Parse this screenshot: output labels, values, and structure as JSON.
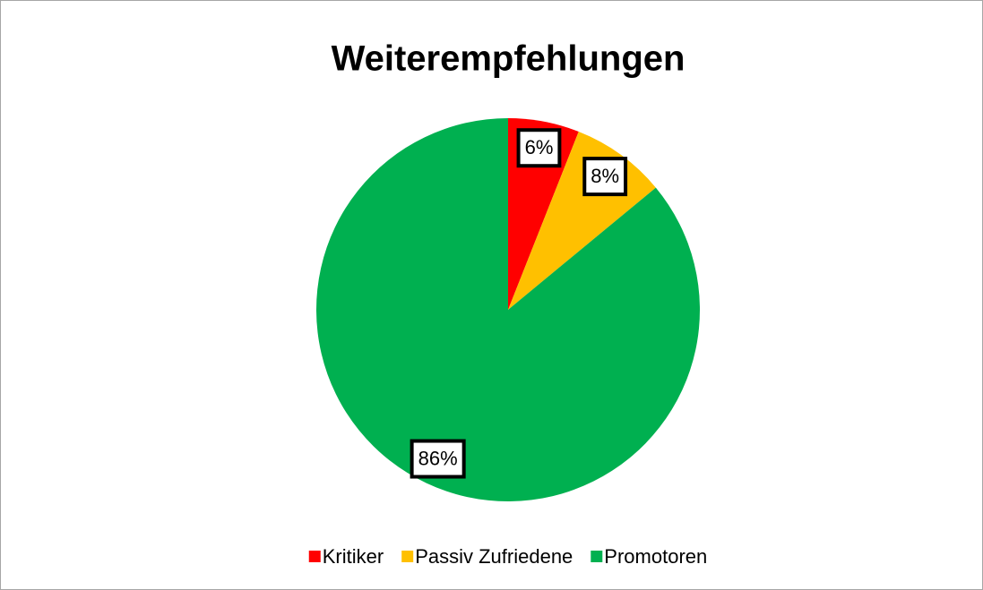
{
  "chart_data": {
    "type": "pie",
    "title": "Weiterempfehlungen",
    "categories": [
      "Kritiker",
      "Passiv Zufriedene",
      "Promotoren"
    ],
    "values": [
      6,
      8,
      86
    ],
    "value_labels": [
      "6%",
      "8%",
      "86%"
    ],
    "colors": [
      "#ff0000",
      "#ffc000",
      "#00b050"
    ],
    "legend": "bottom"
  }
}
